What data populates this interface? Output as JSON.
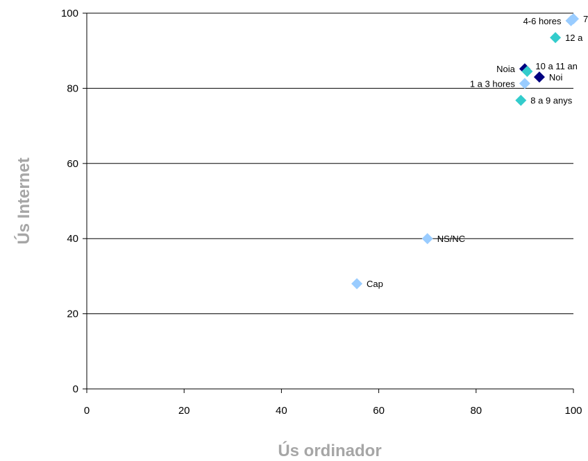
{
  "chart_data": {
    "type": "scatter",
    "title": "",
    "xlabel": "Ús ordinador",
    "ylabel": "Ús Internet",
    "xlim": [
      0,
      100
    ],
    "ylim": [
      0,
      100
    ],
    "xticks": [
      0,
      20,
      40,
      60,
      80,
      100
    ],
    "yticks": [
      0,
      20,
      40,
      60,
      80,
      100
    ],
    "grid": "horizontal",
    "legend": "none",
    "colors": {
      "sexe": "#000080",
      "edat": "#33cccc",
      "temps": "#99ccff"
    },
    "points": [
      {
        "label": "4-6 hores",
        "x": 99.5,
        "y": 98,
        "group": "temps",
        "label_pos": "left"
      },
      {
        "label": "7",
        "x": 100,
        "y": 98.5,
        "group": "temps",
        "label_pos": "right"
      },
      {
        "label": "12 a",
        "x": 96.3,
        "y": 93.5,
        "group": "edat",
        "label_pos": "right"
      },
      {
        "label": "Noia",
        "x": 90,
        "y": 85.2,
        "group": "sexe",
        "label_pos": "left"
      },
      {
        "label": "10 a 11 an",
        "x": 90.5,
        "y": 84.5,
        "group": "edat",
        "label_pos": "right-high"
      },
      {
        "label": "Noi",
        "x": 93,
        "y": 83,
        "group": "sexe",
        "label_pos": "right"
      },
      {
        "label": "1 a 3 hores",
        "x": 90,
        "y": 81.3,
        "group": "temps",
        "label_pos": "left"
      },
      {
        "label": "8 a 9 anys",
        "x": 89.2,
        "y": 76.8,
        "group": "edat",
        "label_pos": "right"
      },
      {
        "label": "NS/NC",
        "x": 70,
        "y": 40,
        "group": "temps",
        "label_pos": "right"
      },
      {
        "label": "Cap",
        "x": 55.5,
        "y": 28,
        "group": "temps",
        "label_pos": "right"
      }
    ]
  }
}
